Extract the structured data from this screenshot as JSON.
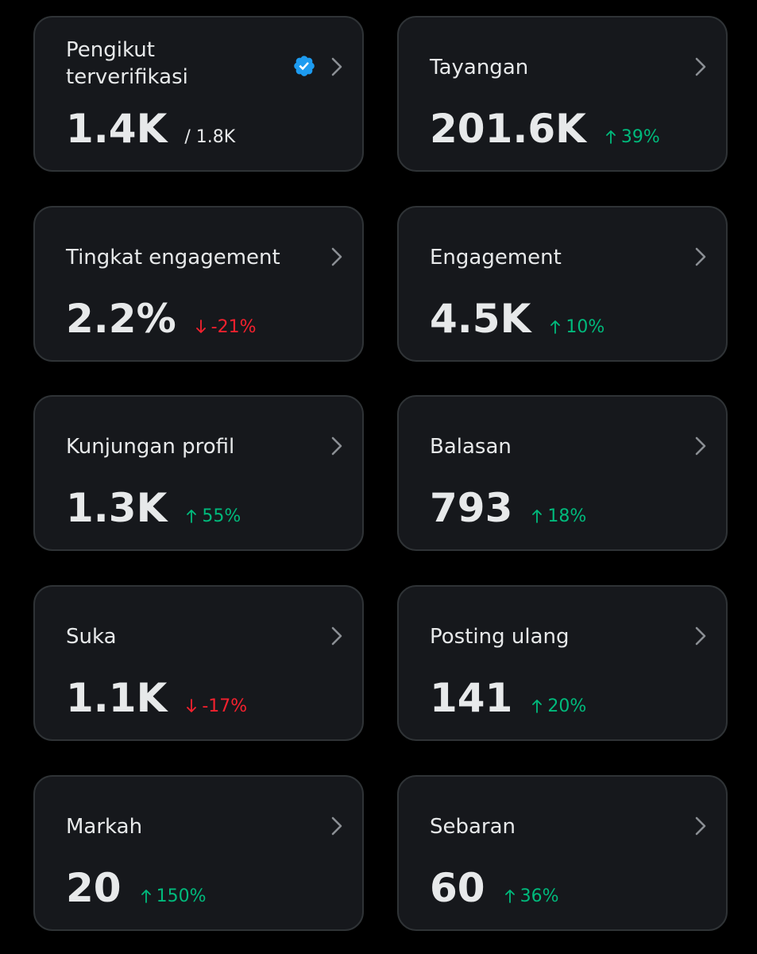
{
  "cards": [
    {
      "id": "pengikut",
      "title": "Pengikut terverifikasi",
      "value": "1.4K",
      "total": "/ 1.8K",
      "verified": true
    },
    {
      "id": "tayangan",
      "title": "Tayangan",
      "value": "201.6K",
      "delta": "39%",
      "direction": "up"
    },
    {
      "id": "tingkat",
      "title": "Tingkat engagement",
      "value": "2.2%",
      "delta": "-21%",
      "direction": "down"
    },
    {
      "id": "engagement",
      "title": "Engagement",
      "value": "4.5K",
      "delta": "10%",
      "direction": "up"
    },
    {
      "id": "kunjungan",
      "title": "Kunjungan profil",
      "value": "1.3K",
      "delta": "55%",
      "direction": "up"
    },
    {
      "id": "balasan",
      "title": "Balasan",
      "value": "793",
      "delta": "18%",
      "direction": "up"
    },
    {
      "id": "suka",
      "title": "Suka",
      "value": "1.1K",
      "delta": "-17%",
      "direction": "down"
    },
    {
      "id": "posting",
      "title": "Posting ulang",
      "value": "141",
      "delta": "20%",
      "direction": "up"
    },
    {
      "id": "markah",
      "title": "Markah",
      "value": "20",
      "delta": "150%",
      "direction": "up"
    },
    {
      "id": "sebaran",
      "title": "Sebaran",
      "value": "60",
      "delta": "36%",
      "direction": "up"
    }
  ],
  "colors": {
    "up": "#00ba7c",
    "down": "#f4212e",
    "verified": "#1d9bf0",
    "card_bg": "#16181c",
    "card_border": "#2f3336"
  }
}
